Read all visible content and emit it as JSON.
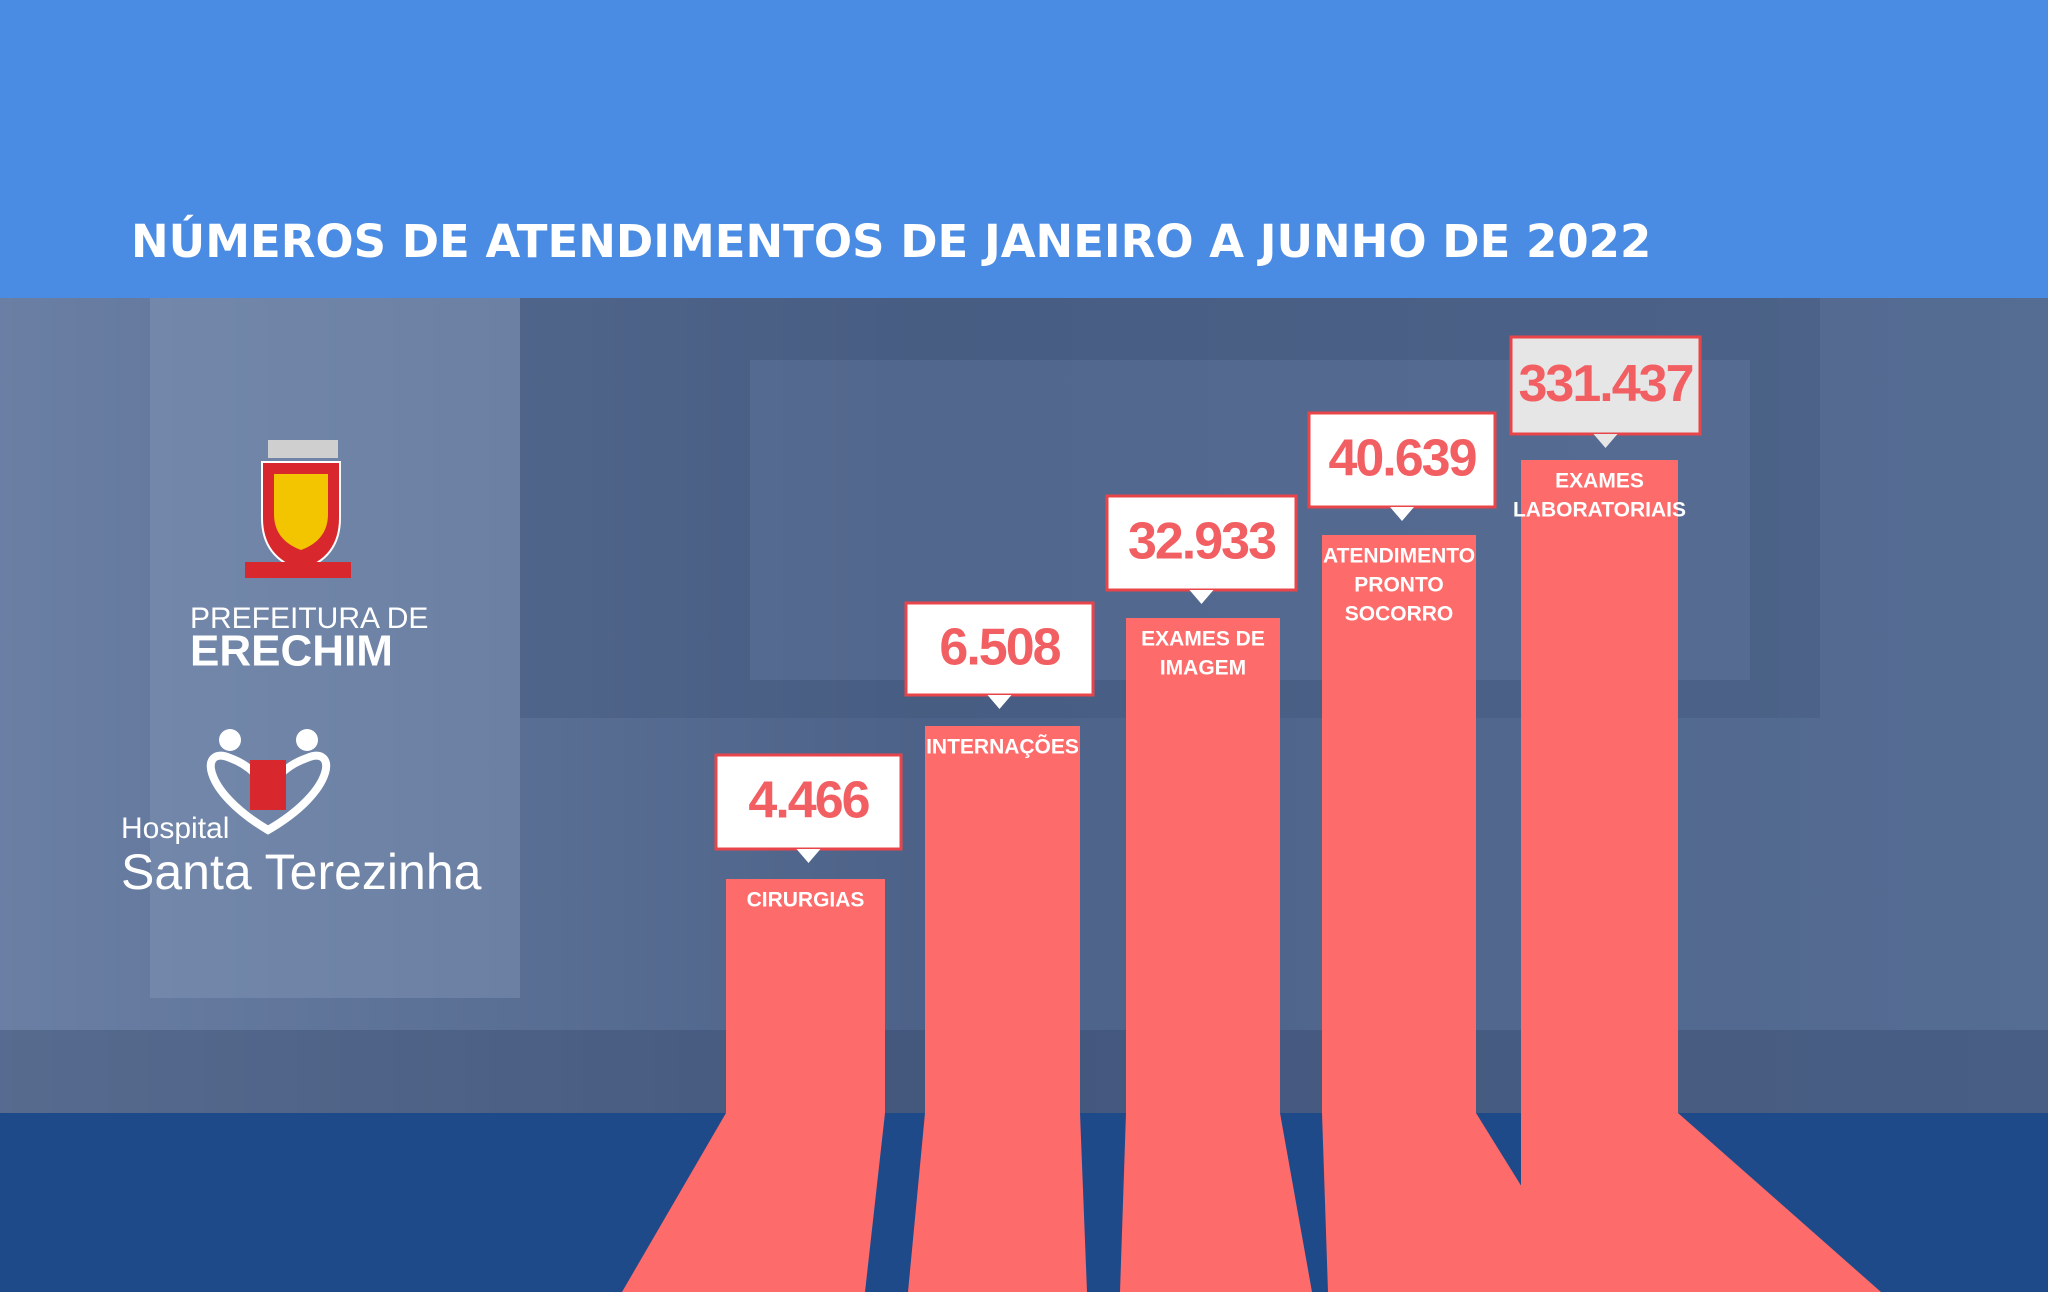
{
  "header": {
    "title": "NÚMEROS DE ATENDIMENTOS DE JANEIRO A JUNHO DE 2022"
  },
  "logos": {
    "prefeitura_line1": "PREFEITURA DE",
    "prefeitura_line2": "ERECHIM",
    "hospital_line1": "Hospital",
    "hospital_line2": "Santa Terezinha"
  },
  "items": [
    {
      "value": "4.466",
      "label": [
        "CIRURGIAS"
      ]
    },
    {
      "value": "6.508",
      "label": [
        "INTERNAÇÕES"
      ]
    },
    {
      "value": "32.933",
      "label": [
        "EXAMES DE",
        "IMAGEM"
      ]
    },
    {
      "value": "40.639",
      "label": [
        "ATENDIMENTO",
        "PRONTO",
        "SOCORRO"
      ]
    },
    {
      "value": "331.437",
      "label": [
        "EXAMES",
        "LABORATORIAIS"
      ]
    }
  ]
}
